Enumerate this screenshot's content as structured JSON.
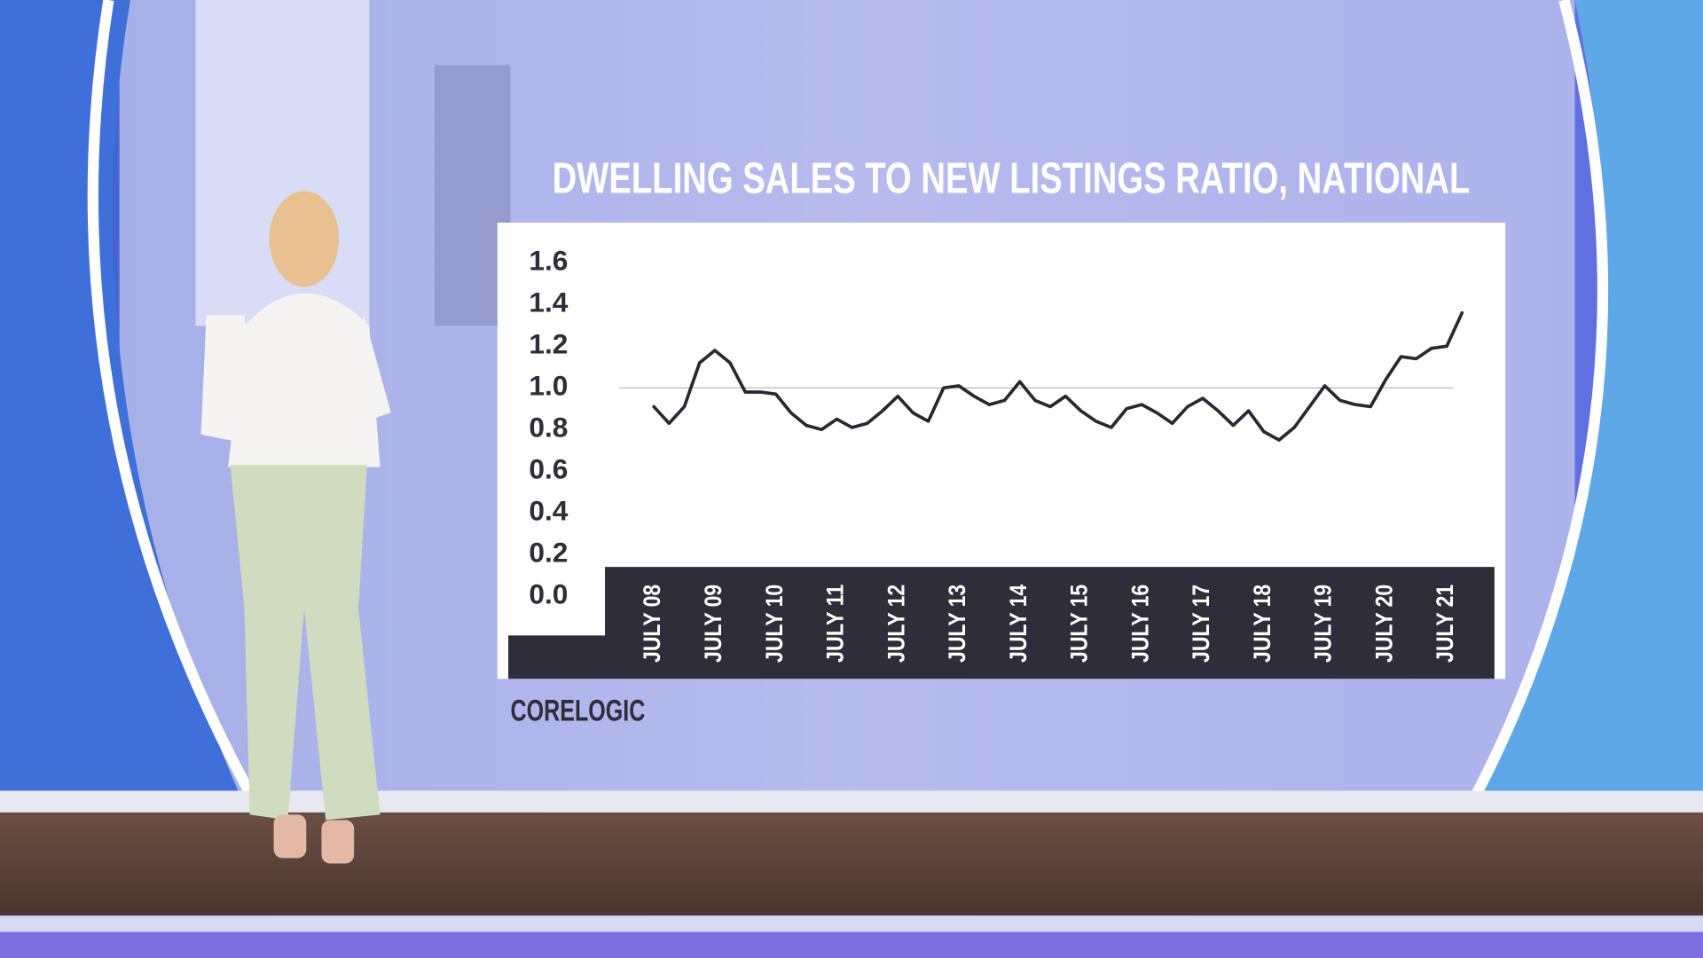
{
  "chart_data": {
    "type": "line",
    "title": "DWELLING SALES TO NEW LISTINGS RATIO, NATIONAL",
    "source": "CORELOGIC",
    "categories": [
      "JULY 08",
      null,
      null,
      null,
      "JULY 09",
      null,
      null,
      null,
      "JULY 10",
      null,
      null,
      null,
      "JULY 11",
      null,
      null,
      null,
      "JULY 12",
      null,
      null,
      null,
      "JULY 13",
      null,
      null,
      null,
      "JULY 14",
      null,
      null,
      null,
      "JULY 15",
      null,
      null,
      null,
      "JULY 16",
      null,
      null,
      null,
      "JULY 17",
      null,
      null,
      null,
      "JULY 18",
      null,
      null,
      null,
      "JULY 19",
      null,
      null,
      null,
      "JULY 20",
      null,
      null,
      null,
      "JULY 21",
      null
    ],
    "values": [
      0.91,
      0.83,
      0.91,
      1.12,
      1.18,
      1.12,
      0.98,
      0.98,
      0.97,
      0.88,
      0.82,
      0.8,
      0.85,
      0.81,
      0.83,
      0.89,
      0.96,
      0.88,
      0.84,
      1.0,
      1.01,
      0.96,
      0.92,
      0.94,
      1.03,
      0.94,
      0.91,
      0.96,
      0.89,
      0.84,
      0.81,
      0.9,
      0.92,
      0.88,
      0.83,
      0.91,
      0.95,
      0.89,
      0.82,
      0.89,
      0.79,
      0.75,
      0.81,
      0.91,
      1.01,
      0.94,
      0.92,
      0.91,
      1.04,
      1.15,
      1.14,
      1.19,
      1.2,
      1.36
    ],
    "color": "#2a2733",
    "reference_line": {
      "value": 1,
      "label": "1.0"
    },
    "ylim": [
      0,
      1.6
    ],
    "yticks": [
      {
        "value": 0,
        "label": "0.0"
      },
      0.2,
      0.4,
      0.6,
      0.8,
      {
        "value": 1,
        "label": "1.0"
      },
      1.2,
      1.4,
      1.6
    ]
  }
}
